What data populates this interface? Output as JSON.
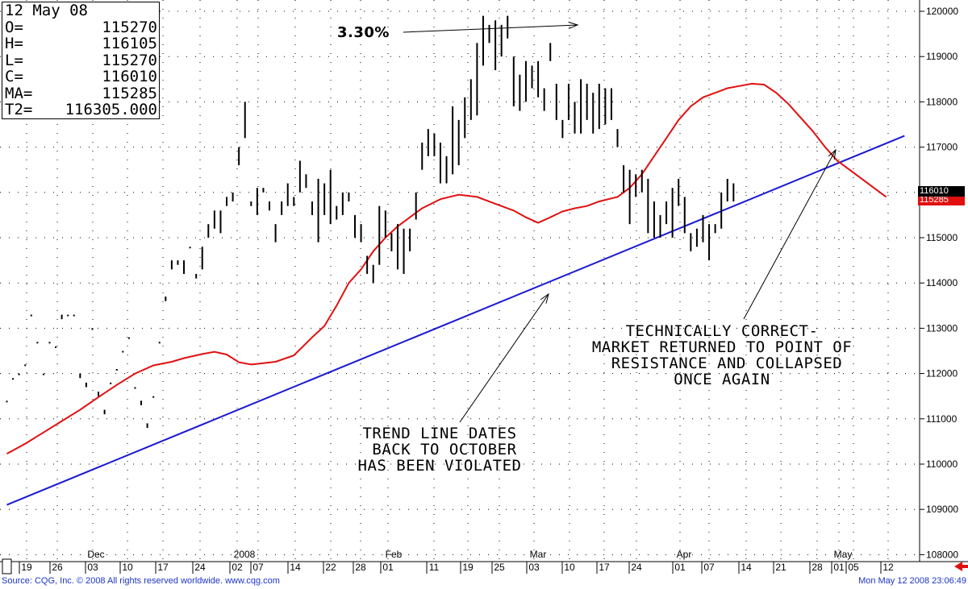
{
  "ohlc_panel": {
    "rows": [
      {
        "label": "12 May 08",
        "value": ""
      },
      {
        "label": "O=",
        "value": "115270"
      },
      {
        "label": "H=",
        "value": "116105"
      },
      {
        "label": "L=",
        "value": "115270"
      },
      {
        "label": "C=",
        "value": "116010"
      },
      {
        "label": "MA=",
        "value": "115285"
      },
      {
        "label": "T2=",
        "value": "116305.000"
      }
    ]
  },
  "annotations": {
    "peak_pct": "3.30%",
    "trend_note": "TREND LINE DATES\n BACK TO OCTOBER\nHAS BEEN VIOLATED",
    "resistance_note": "TECHNICALLY CORRECT-\nMARKET RETURNED TO POINT OF\n RESISTANCE AND COLLAPSED\nONCE AGAIN"
  },
  "footer": {
    "source": "Source: CQG, Inc. © 2008 All rights reserved worldwide. www.cqg.com",
    "timestamp": "Mon May 12 2008 23:06:49"
  },
  "price_tags": {
    "last": "116010",
    "ma": "115285"
  },
  "colors": {
    "bars": "#000000",
    "moving_average": "#e01010",
    "trend_line": "#1a1ad0",
    "last_tag": "#000000",
    "ma_tag": "#e01010",
    "footer_text": "#1c35c8",
    "arrow_icon": "#e01010"
  },
  "chart_data": {
    "type": "ohlc",
    "ylim": [
      108000,
      120200
    ],
    "y_ticks": [
      "120000",
      "119000",
      "118000",
      "117000",
      "116000",
      "115000",
      "114000",
      "113000",
      "112000",
      "111000",
      "110000",
      "109000",
      "108000"
    ],
    "x_day_ticks": [
      "19",
      "26",
      "03",
      "10",
      "17",
      "24",
      "02",
      "07",
      "14",
      "22",
      "28",
      "01",
      "11",
      "19",
      "25",
      "03",
      "10",
      "17",
      "24",
      "01",
      "07",
      "14",
      "21",
      "28",
      "01",
      "05",
      "12"
    ],
    "x_month_labels": [
      "Dec",
      "2008",
      "Feb",
      "Mar",
      "Apr",
      "May"
    ],
    "grid": "dotted",
    "bars": [
      [
        111400,
        111400
      ],
      [
        111900,
        111900
      ],
      [
        112000,
        112000
      ],
      [
        112200,
        112200
      ],
      [
        113300,
        113300
      ],
      [
        112700,
        112700
      ],
      [
        112000,
        112000
      ],
      [
        112700,
        112700
      ],
      [
        112600,
        112600
      ],
      [
        113200,
        113300
      ],
      [
        113300,
        113300
      ],
      [
        113300,
        113300
      ],
      [
        112000,
        111900
      ],
      [
        111800,
        111700
      ],
      [
        113000,
        113000
      ],
      [
        111600,
        111500
      ],
      [
        111200,
        111100
      ],
      [
        111800,
        111800
      ],
      [
        112100,
        112100
      ],
      [
        112500,
        112500
      ],
      [
        112800,
        112800
      ],
      [
        111700,
        111700
      ],
      [
        111400,
        111300
      ],
      [
        110900,
        110800
      ],
      [
        111500,
        111500
      ],
      [
        112700,
        112700
      ],
      [
        113700,
        113600
      ],
      [
        114500,
        114300
      ],
      [
        114500,
        114400
      ],
      [
        114500,
        114200
      ],
      [
        114800,
        114800
      ],
      [
        114200,
        114100
      ],
      [
        114800,
        114300
      ],
      [
        115300,
        115000
      ],
      [
        115600,
        115200
      ],
      [
        115600,
        115100
      ],
      [
        115900,
        115700
      ],
      [
        116000,
        115800
      ],
      [
        117000,
        116600
      ],
      [
        118000,
        117200
      ],
      [
        115800,
        115700
      ],
      [
        116100,
        115500
      ],
      [
        116100,
        116000
      ],
      [
        115800,
        115600
      ],
      [
        115300,
        114900
      ],
      [
        115800,
        115500
      ],
      [
        116200,
        115700
      ],
      [
        115900,
        115700
      ],
      [
        116700,
        116000
      ],
      [
        116400,
        116100
      ],
      [
        115800,
        115500
      ],
      [
        116300,
        114900
      ],
      [
        116200,
        115500
      ],
      [
        116500,
        115300
      ],
      [
        115700,
        115400
      ],
      [
        116000,
        115500
      ],
      [
        116000,
        115800
      ],
      [
        115500,
        115000
      ],
      [
        115300,
        114900
      ],
      [
        114600,
        114200
      ],
      [
        114400,
        114000
      ],
      [
        115700,
        114400
      ],
      [
        115600,
        115000
      ],
      [
        115100,
        114700
      ],
      [
        115300,
        114300
      ],
      [
        115200,
        114200
      ],
      [
        115200,
        114700
      ],
      [
        116000,
        115400
      ],
      [
        117100,
        116500
      ],
      [
        117400,
        116800
      ],
      [
        117300,
        116800
      ],
      [
        117100,
        116200
      ],
      [
        116800,
        116200
      ],
      [
        117900,
        116400
      ],
      [
        117600,
        116600
      ],
      [
        118100,
        117200
      ],
      [
        118500,
        117600
      ],
      [
        119300,
        117700
      ],
      [
        119900,
        118800
      ],
      [
        119700,
        119300
      ],
      [
        119800,
        118700
      ],
      [
        119700,
        119000
      ],
      [
        119900,
        119400
      ],
      [
        119000,
        117900
      ],
      [
        118600,
        117800
      ],
      [
        118900,
        118000
      ],
      [
        118800,
        118300
      ],
      [
        118900,
        118100
      ],
      [
        118300,
        117800
      ],
      [
        119300,
        118900
      ],
      [
        118400,
        117600
      ],
      [
        117600,
        117200
      ],
      [
        118400,
        117600
      ],
      [
        118000,
        117300
      ],
      [
        118500,
        117300
      ],
      [
        118400,
        117600
      ],
      [
        118200,
        117300
      ],
      [
        118400,
        117400
      ],
      [
        118300,
        117500
      ],
      [
        118300,
        117600
      ],
      [
        117400,
        117000
      ],
      [
        116600,
        116000
      ],
      [
        116500,
        115300
      ],
      [
        116400,
        115900
      ],
      [
        116500,
        116000
      ],
      [
        116300,
        115100
      ],
      [
        115800,
        115000
      ],
      [
        115500,
        115000
      ],
      [
        115800,
        115300
      ],
      [
        116100,
        115000
      ],
      [
        116300,
        115700
      ],
      [
        115900,
        115100
      ],
      [
        115100,
        114700
      ],
      [
        115200,
        114800
      ],
      [
        115500,
        114900
      ],
      [
        115300,
        114500
      ],
      [
        115300,
        115100
      ],
      [
        116000,
        115200
      ],
      [
        116300,
        115800
      ],
      [
        116200,
        115800
      ]
    ],
    "moving_average": [
      [
        0,
        110230
      ],
      [
        3,
        110450
      ],
      [
        6,
        110700
      ],
      [
        9,
        110950
      ],
      [
        12,
        111200
      ],
      [
        15,
        111480
      ],
      [
        18,
        111750
      ],
      [
        21,
        112000
      ],
      [
        24,
        112180
      ],
      [
        27,
        112260
      ],
      [
        29,
        112340
      ],
      [
        32,
        112430
      ],
      [
        34,
        112480
      ],
      [
        36,
        112420
      ],
      [
        38,
        112250
      ],
      [
        40,
        112200
      ],
      [
        42,
        112230
      ],
      [
        44,
        112260
      ],
      [
        47,
        112400
      ],
      [
        50,
        112800
      ],
      [
        52,
        113050
      ],
      [
        54,
        113500
      ],
      [
        56,
        114000
      ],
      [
        58,
        114300
      ],
      [
        60,
        114700
      ],
      [
        62,
        115000
      ],
      [
        64,
        115250
      ],
      [
        66,
        115450
      ],
      [
        68,
        115650
      ],
      [
        71,
        115850
      ],
      [
        74,
        115950
      ],
      [
        77,
        115900
      ],
      [
        80,
        115750
      ],
      [
        83,
        115600
      ],
      [
        85,
        115450
      ],
      [
        87,
        115330
      ],
      [
        89,
        115450
      ],
      [
        91,
        115580
      ],
      [
        93,
        115650
      ],
      [
        95,
        115700
      ],
      [
        97,
        115800
      ],
      [
        100,
        115900
      ],
      [
        102,
        116100
      ],
      [
        104,
        116400
      ],
      [
        106,
        116800
      ],
      [
        108,
        117200
      ],
      [
        110,
        117600
      ],
      [
        112,
        117900
      ],
      [
        114,
        118100
      ],
      [
        116,
        118200
      ],
      [
        118,
        118300
      ],
      [
        120,
        118350
      ],
      [
        122,
        118400
      ],
      [
        124,
        118380
      ],
      [
        126,
        118200
      ],
      [
        128,
        117950
      ],
      [
        130,
        117650
      ],
      [
        132,
        117350
      ],
      [
        134,
        117000
      ],
      [
        136,
        116700
      ],
      [
        138,
        116500
      ],
      [
        140,
        116300
      ],
      [
        142,
        116100
      ],
      [
        144,
        115900
      ]
    ],
    "trend_line": {
      "from": [
        0,
        109100
      ],
      "to": [
        147,
        117250
      ]
    }
  }
}
